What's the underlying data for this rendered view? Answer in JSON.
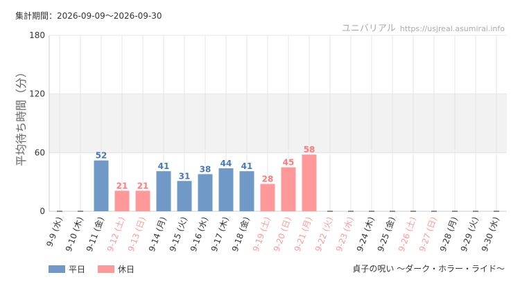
{
  "header": {
    "period": "集計期間：2026-09-09〜2026-09-30",
    "site_name": "ユニバリアル",
    "site_url": "https://usjreal.asumirai.info"
  },
  "attraction": "貞子の呪い 〜ダーク・ホラー・ライド〜",
  "colors": {
    "weekday": "#7099c8",
    "holiday": "#ff9999",
    "weekday_label": "#4a78b0",
    "holiday_label": "#ff7a7a",
    "band": "#f2f2f2",
    "grid": "#e4e4e4"
  },
  "chart_data": {
    "type": "bar",
    "ylabel": "平均待ち時間（分）",
    "ylim": [
      0,
      180
    ],
    "yticks": [
      0,
      60,
      120,
      180
    ],
    "band": [
      60,
      120
    ],
    "legend": [
      {
        "name": "平日",
        "key": "weekday"
      },
      {
        "name": "休日",
        "key": "holiday"
      }
    ],
    "categories": [
      "9-9 (水)",
      "9-10 (木)",
      "9-11 (金)",
      "9-12 (土)",
      "9-13 (日)",
      "9-14 (月)",
      "9-15 (火)",
      "9-16 (水)",
      "9-17 (木)",
      "9-18 (金)",
      "9-19 (土)",
      "9-20 (日)",
      "9-21 (月)",
      "9-22 (火)",
      "9-23 (水)",
      "9-24 (木)",
      "9-25 (金)",
      "9-26 (土)",
      "9-27 (日)",
      "9-28 (月)",
      "9-29 (火)",
      "9-30 (水)"
    ],
    "day_type": [
      "weekday",
      "weekday",
      "weekday",
      "holiday",
      "holiday",
      "weekday",
      "weekday",
      "weekday",
      "weekday",
      "weekday",
      "holiday",
      "holiday",
      "holiday",
      "holiday",
      "holiday",
      "weekday",
      "weekday",
      "holiday",
      "holiday",
      "weekday",
      "weekday",
      "weekday"
    ],
    "values": [
      null,
      null,
      52,
      21,
      21,
      41,
      31,
      38,
      44,
      41,
      28,
      45,
      58,
      null,
      null,
      null,
      null,
      null,
      null,
      null,
      null,
      null
    ]
  }
}
